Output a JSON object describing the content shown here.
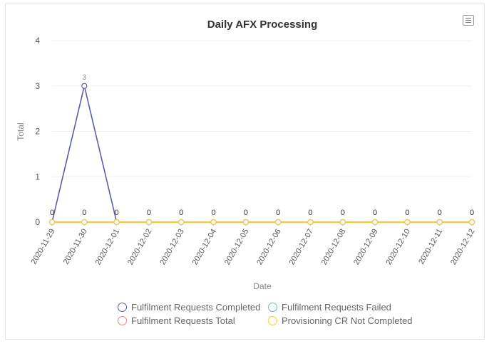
{
  "chart_data": {
    "type": "line",
    "title": "Daily AFX Processing",
    "xlabel": "Date",
    "ylabel": "Total",
    "ylim": [
      0,
      4
    ],
    "yticks": [
      0,
      1,
      2,
      3,
      4
    ],
    "grid": true,
    "legend_placement": "bottom",
    "categories": [
      "2020-11-29",
      "2020-11-30",
      "2020-12-01",
      "2020-12-02",
      "2020-12-03",
      "2020-12-04",
      "2020-12-05",
      "2020-12-06",
      "2020-12-07",
      "2020-12-08",
      "2020-12-09",
      "2020-12-10",
      "2020-12-11",
      "2020-12-12"
    ],
    "series": [
      {
        "name": "Fulfilment Requests Completed",
        "color": "#5b5ea6",
        "values": [
          0,
          3,
          0,
          0,
          0,
          0,
          0,
          0,
          0,
          0,
          0,
          0,
          0,
          0
        ]
      },
      {
        "name": "Fulfilment Requests Failed",
        "color": "#5bc2c2",
        "values": [
          0,
          0,
          0,
          0,
          0,
          0,
          0,
          0,
          0,
          0,
          0,
          0,
          0,
          0
        ]
      },
      {
        "name": "Fulfilment Requests Total",
        "color": "#f08080",
        "values": [
          0,
          0,
          0,
          0,
          0,
          0,
          0,
          0,
          0,
          0,
          0,
          0,
          0,
          0
        ]
      },
      {
        "name": "Provisioning CR Not Completed",
        "color": "#f2c94c",
        "values": [
          0,
          0,
          0,
          0,
          0,
          0,
          0,
          0,
          0,
          0,
          0,
          0,
          0,
          0
        ]
      }
    ],
    "data_labels": {
      "peak": {
        "category": "2020-11-30",
        "value": 3
      },
      "baseline": [
        0,
        0,
        0,
        0,
        0,
        0,
        0,
        0,
        0,
        0,
        0,
        0,
        0,
        0
      ]
    }
  },
  "menu_icon": "hamburger-menu-icon"
}
